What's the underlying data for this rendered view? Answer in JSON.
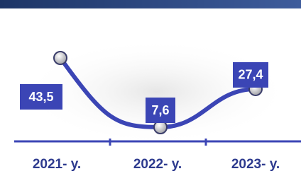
{
  "chart_data": {
    "type": "line",
    "categories": [
      "2021- y.",
      "2022- y.",
      "2023- y."
    ],
    "values": [
      43.5,
      7.6,
      27.4
    ],
    "value_labels": [
      "43,5",
      "7,6",
      "27,4"
    ],
    "color": "#3b45b5"
  }
}
